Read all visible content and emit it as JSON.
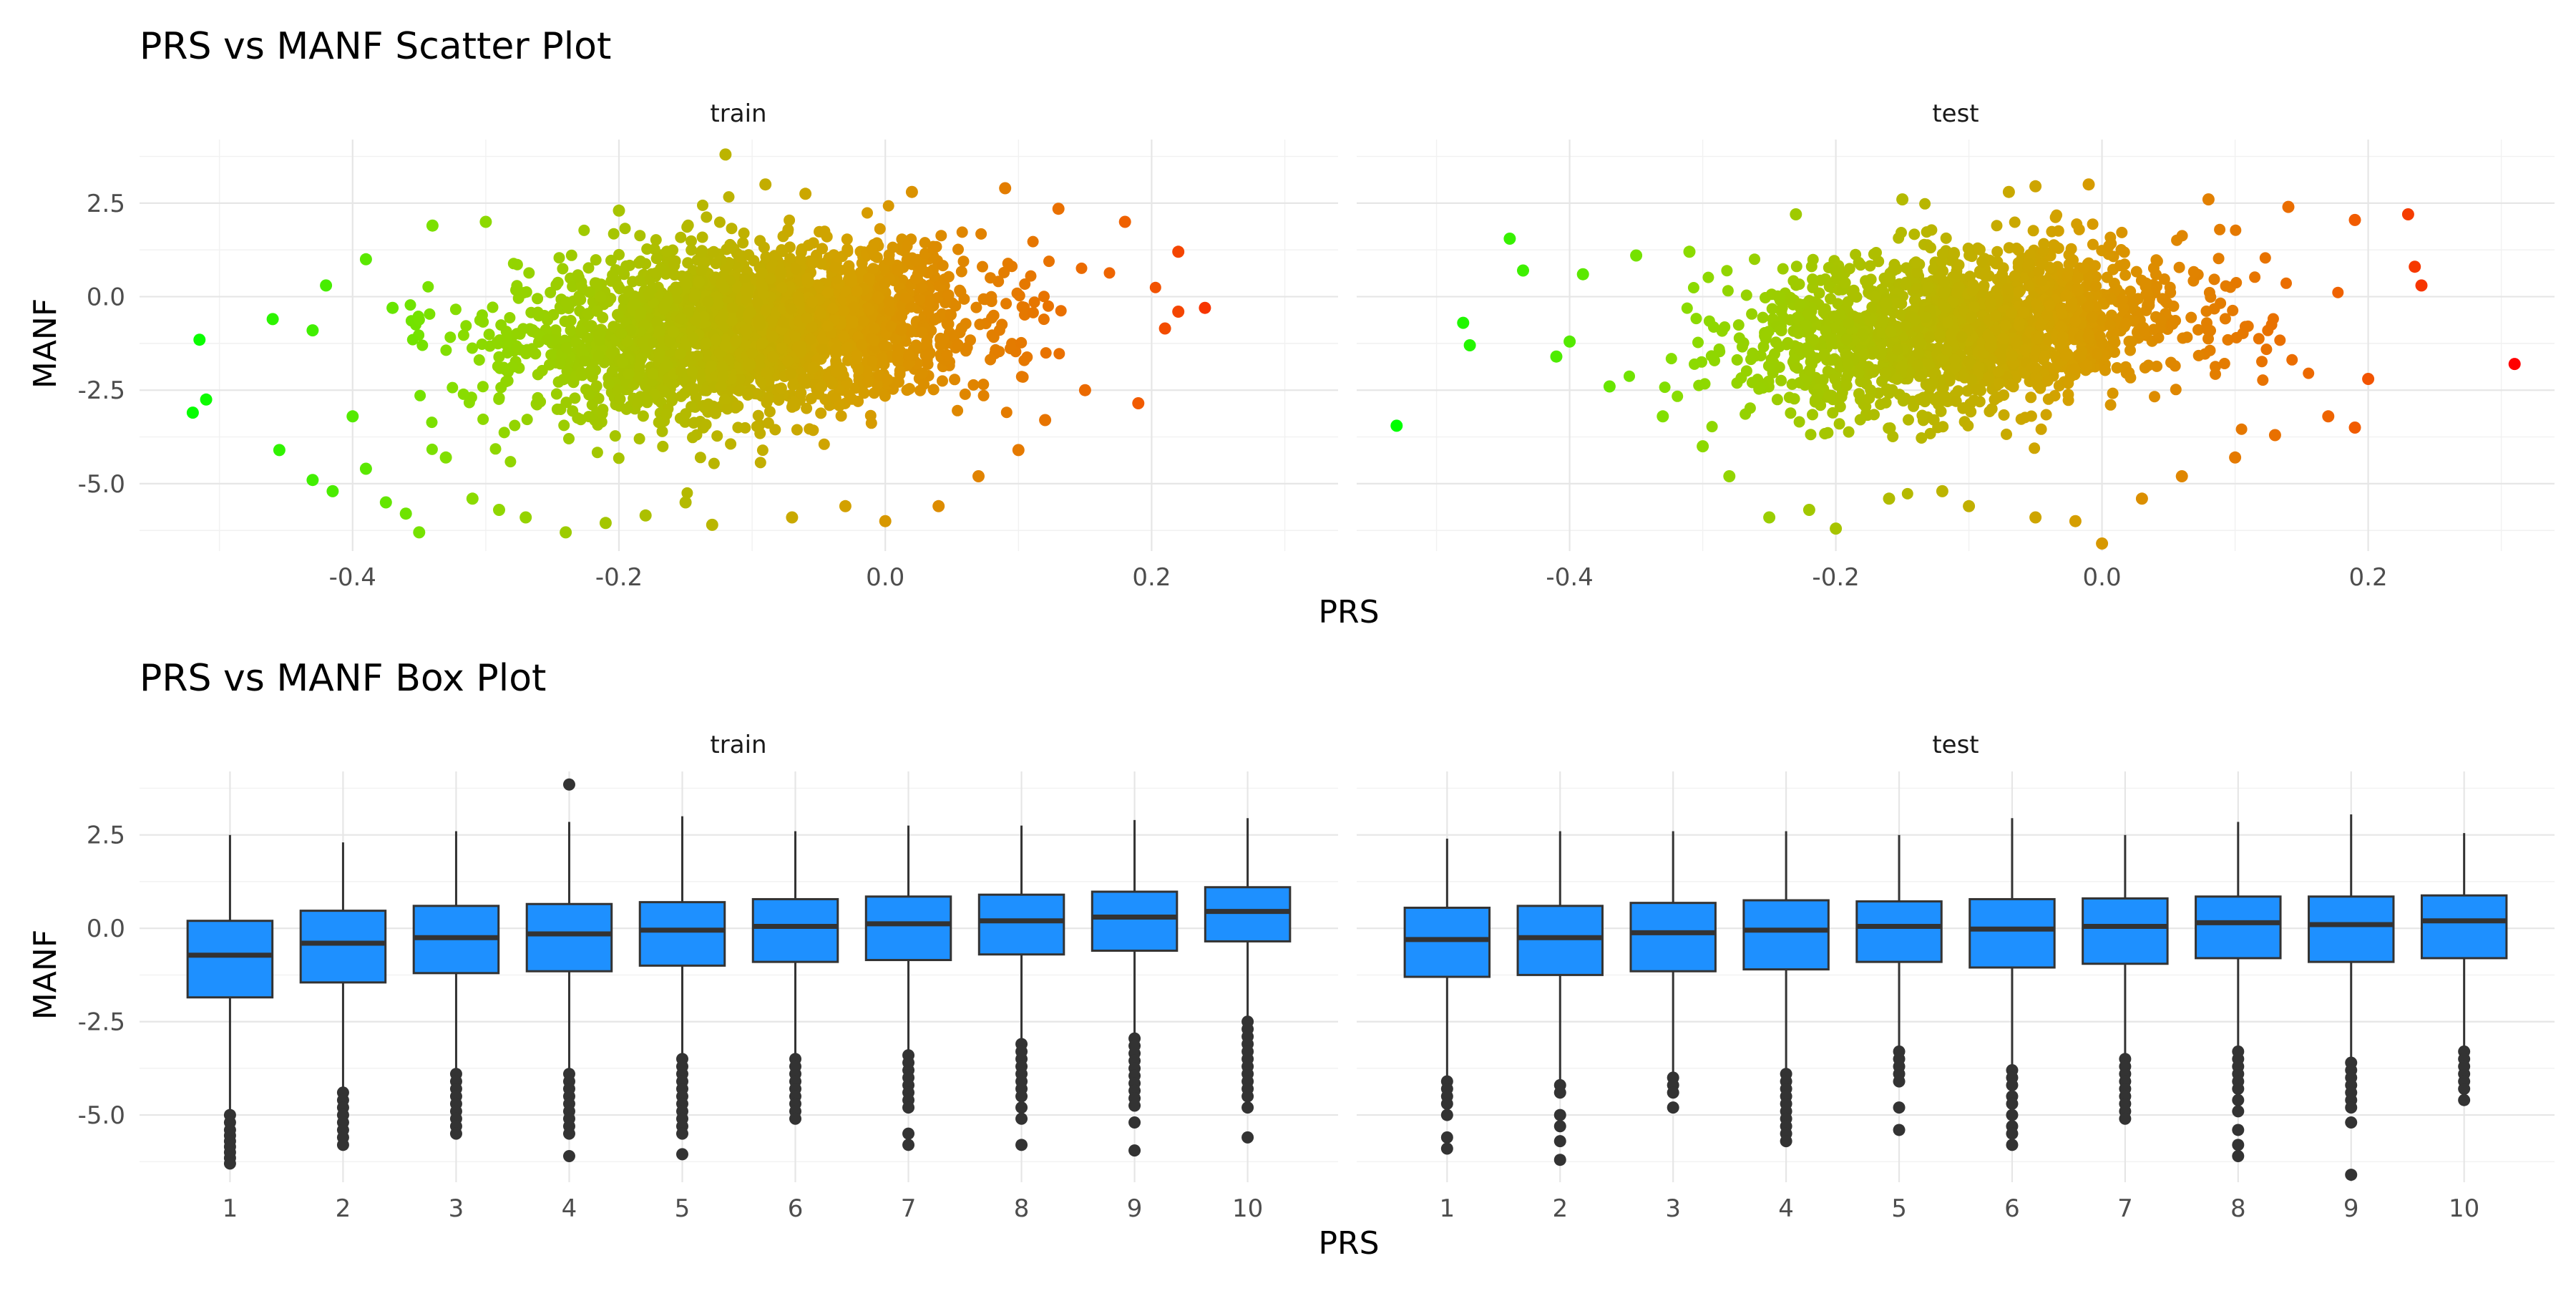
{
  "chart_data": [
    {
      "type": "scatter",
      "title": "PRS vs MANF Scatter Plot",
      "xlabel": "PRS",
      "ylabel": "MANF",
      "facets": [
        "train",
        "test"
      ],
      "xlim": [
        -0.56,
        0.34
      ],
      "ylim": [
        -6.8,
        4.2
      ],
      "x_ticks": [
        -0.4,
        -0.2,
        0.0,
        0.2
      ],
      "x_tick_labels": [
        "-0.4",
        "-0.2",
        "0.0",
        "0.2"
      ],
      "y_ticks": [
        -5.0,
        -2.5,
        0.0,
        2.5
      ],
      "y_tick_labels": [
        "-5.0",
        "-2.5",
        "0.0",
        "2.5"
      ],
      "grid": true,
      "legend": "none",
      "color_gradient": {
        "low": "#00ff00",
        "mid": "#88dd00",
        "high": "#ff0000",
        "mapped_to": "PRS"
      },
      "series": [
        {
          "facet": "train",
          "points": [
            [
              -0.52,
              -3.1
            ],
            [
              -0.51,
              -2.75
            ],
            [
              -0.515,
              -1.15
            ],
            [
              -0.46,
              -0.6
            ],
            [
              -0.455,
              -4.1
            ],
            [
              -0.43,
              -4.9
            ],
            [
              -0.415,
              -5.2
            ],
            [
              -0.4,
              -3.2
            ],
            [
              -0.39,
              -4.6
            ],
            [
              -0.375,
              -5.5
            ],
            [
              -0.36,
              -5.8
            ],
            [
              -0.35,
              -6.3
            ],
            [
              -0.42,
              0.3
            ],
            [
              -0.43,
              -0.9
            ],
            [
              -0.39,
              1.0
            ],
            [
              -0.37,
              -0.3
            ],
            [
              -0.34,
              1.9
            ],
            [
              -0.33,
              -4.3
            ],
            [
              -0.31,
              -5.4
            ],
            [
              -0.29,
              -5.7
            ],
            [
              -0.27,
              -5.9
            ],
            [
              -0.24,
              -6.3
            ],
            [
              -0.21,
              -6.05
            ],
            [
              -0.18,
              -5.85
            ],
            [
              -0.15,
              -5.5
            ],
            [
              -0.13,
              -6.1
            ],
            [
              -0.12,
              3.8
            ],
            [
              -0.09,
              3.0
            ],
            [
              -0.07,
              -5.9
            ],
            [
              -0.03,
              -5.6
            ],
            [
              0.0,
              -6.0
            ],
            [
              0.04,
              -5.6
            ],
            [
              0.07,
              -4.8
            ],
            [
              0.1,
              -4.1
            ],
            [
              0.12,
              -3.3
            ],
            [
              0.15,
              -2.5
            ],
            [
              0.19,
              -2.85
            ],
            [
              0.22,
              1.2
            ],
            [
              0.24,
              -0.3
            ],
            [
              0.22,
              -0.4
            ],
            [
              0.21,
              -0.85
            ],
            [
              0.18,
              2.0
            ],
            [
              0.13,
              2.35
            ],
            [
              0.09,
              2.9
            ],
            [
              0.02,
              2.8
            ],
            [
              -0.06,
              2.75
            ],
            [
              -0.2,
              2.3
            ],
            [
              -0.3,
              2.0
            ]
          ]
        },
        {
          "facet": "test",
          "points": [
            [
              -0.53,
              -3.45
            ],
            [
              -0.48,
              -0.7
            ],
            [
              -0.475,
              -1.3
            ],
            [
              -0.445,
              1.55
            ],
            [
              -0.435,
              0.7
            ],
            [
              -0.41,
              -1.6
            ],
            [
              -0.4,
              -1.2
            ],
            [
              -0.39,
              0.6
            ],
            [
              -0.37,
              -2.4
            ],
            [
              -0.35,
              1.1
            ],
            [
              -0.33,
              -3.2
            ],
            [
              -0.3,
              -4.0
            ],
            [
              -0.28,
              -4.8
            ],
            [
              -0.25,
              -5.9
            ],
            [
              -0.22,
              -5.7
            ],
            [
              -0.2,
              -6.2
            ],
            [
              -0.16,
              -5.4
            ],
            [
              -0.12,
              -5.2
            ],
            [
              -0.1,
              -5.6
            ],
            [
              -0.05,
              -5.9
            ],
            [
              -0.02,
              -6.0
            ],
            [
              -0.01,
              3.0
            ],
            [
              0.0,
              -6.6
            ],
            [
              0.03,
              -5.4
            ],
            [
              0.06,
              -4.8
            ],
            [
              0.1,
              -4.3
            ],
            [
              0.13,
              -3.7
            ],
            [
              0.17,
              -3.2
            ],
            [
              0.19,
              -3.5
            ],
            [
              0.2,
              -2.2
            ],
            [
              0.24,
              0.3
            ],
            [
              0.235,
              0.8
            ],
            [
              0.23,
              2.2
            ],
            [
              0.31,
              -1.8
            ],
            [
              0.19,
              2.05
            ],
            [
              0.14,
              2.4
            ],
            [
              0.08,
              2.6
            ],
            [
              -0.05,
              2.95
            ],
            [
              -0.07,
              2.8
            ],
            [
              -0.15,
              2.6
            ],
            [
              -0.23,
              2.2
            ],
            [
              -0.31,
              1.2
            ]
          ]
        }
      ]
    },
    {
      "type": "box",
      "title": "PRS vs MANF Box Plot",
      "xlabel": "PRS",
      "ylabel": "MANF",
      "facets": [
        "train",
        "test"
      ],
      "categories": [
        "1",
        "2",
        "3",
        "4",
        "5",
        "6",
        "7",
        "8",
        "9",
        "10"
      ],
      "ylim": [
        -6.8,
        4.2
      ],
      "y_ticks": [
        -5.0,
        -2.5,
        0.0,
        2.5
      ],
      "y_tick_labels": [
        "-5.0",
        "-2.5",
        "0.0",
        "2.5"
      ],
      "grid": true,
      "legend": "none",
      "box_fill": "#1e90ff",
      "outline_color": "#333333",
      "series": [
        {
          "facet": "train",
          "boxes": [
            {
              "q1": -1.85,
              "median": -0.72,
              "q3": 0.2,
              "whisker_low": -4.9,
              "whisker_high": 2.5,
              "outliers": [
                -5.0,
                -5.2,
                -5.4,
                -5.55,
                -5.7,
                -5.85,
                -6.0,
                -6.15,
                -6.3
              ]
            },
            {
              "q1": -1.45,
              "median": -0.4,
              "q3": 0.47,
              "whisker_low": -4.3,
              "whisker_high": 2.3,
              "outliers": [
                -4.4,
                -4.6,
                -4.8,
                -5.0,
                -5.2,
                -5.4,
                -5.6,
                -5.8
              ]
            },
            {
              "q1": -1.2,
              "median": -0.25,
              "q3": 0.6,
              "whisker_low": -3.8,
              "whisker_high": 2.6,
              "outliers": [
                -3.9,
                -4.1,
                -4.3,
                -4.5,
                -4.7,
                -4.9,
                -5.1,
                -5.3,
                -5.5
              ]
            },
            {
              "q1": -1.15,
              "median": -0.15,
              "q3": 0.65,
              "whisker_low": -3.8,
              "whisker_high": 2.85,
              "outliers": [
                3.85,
                -3.9,
                -4.1,
                -4.3,
                -4.5,
                -4.7,
                -4.9,
                -5.1,
                -5.3,
                -5.5,
                -6.1
              ]
            },
            {
              "q1": -1.0,
              "median": -0.05,
              "q3": 0.7,
              "whisker_low": -3.45,
              "whisker_high": 3.0,
              "outliers": [
                -3.5,
                -3.7,
                -3.9,
                -4.1,
                -4.3,
                -4.5,
                -4.7,
                -4.9,
                -5.1,
                -5.3,
                -5.5,
                -6.05
              ]
            },
            {
              "q1": -0.9,
              "median": 0.05,
              "q3": 0.78,
              "whisker_low": -3.4,
              "whisker_high": 2.6,
              "outliers": [
                -3.5,
                -3.7,
                -3.9,
                -4.1,
                -4.3,
                -4.5,
                -4.7,
                -4.9,
                -5.1
              ]
            },
            {
              "q1": -0.85,
              "median": 0.12,
              "q3": 0.85,
              "whisker_low": -3.3,
              "whisker_high": 2.75,
              "outliers": [
                -3.4,
                -3.6,
                -3.8,
                -4.0,
                -4.2,
                -4.4,
                -4.6,
                -4.8,
                -5.5,
                -5.8
              ]
            },
            {
              "q1": -0.7,
              "median": 0.2,
              "q3": 0.9,
              "whisker_low": -3.0,
              "whisker_high": 2.75,
              "outliers": [
                -3.1,
                -3.3,
                -3.5,
                -3.7,
                -3.9,
                -4.1,
                -4.3,
                -4.5,
                -4.8,
                -5.1,
                -5.8
              ]
            },
            {
              "q1": -0.6,
              "median": 0.3,
              "q3": 0.98,
              "whisker_low": -2.85,
              "whisker_high": 2.9,
              "outliers": [
                -2.95,
                -3.15,
                -3.35,
                -3.55,
                -3.75,
                -3.95,
                -4.15,
                -4.35,
                -4.55,
                -4.75,
                -5.2,
                -5.95
              ]
            },
            {
              "q1": -0.35,
              "median": 0.45,
              "q3": 1.1,
              "whisker_low": -2.4,
              "whisker_high": 2.95,
              "outliers": [
                -2.5,
                -2.7,
                -2.9,
                -3.1,
                -3.3,
                -3.5,
                -3.7,
                -3.9,
                -4.1,
                -4.3,
                -4.5,
                -4.8,
                -5.6
              ]
            }
          ]
        },
        {
          "facet": "test",
          "boxes": [
            {
              "q1": -1.3,
              "median": -0.3,
              "q3": 0.55,
              "whisker_low": -4.0,
              "whisker_high": 2.4,
              "outliers": [
                -4.1,
                -4.3,
                -4.5,
                -4.7,
                -5.0,
                -5.6,
                -5.9
              ]
            },
            {
              "q1": -1.25,
              "median": -0.25,
              "q3": 0.6,
              "whisker_low": -4.1,
              "whisker_high": 2.6,
              "outliers": [
                -4.2,
                -4.4,
                -5.0,
                -5.3,
                -5.7,
                -6.2
              ]
            },
            {
              "q1": -1.15,
              "median": -0.12,
              "q3": 0.68,
              "whisker_low": -3.9,
              "whisker_high": 2.6,
              "outliers": [
                -4.0,
                -4.2,
                -4.4,
                -4.8
              ]
            },
            {
              "q1": -1.1,
              "median": -0.05,
              "q3": 0.75,
              "whisker_low": -3.8,
              "whisker_high": 2.6,
              "outliers": [
                -3.9,
                -4.1,
                -4.3,
                -4.5,
                -4.7,
                -4.9,
                -5.1,
                -5.3,
                -5.5,
                -5.7
              ]
            },
            {
              "q1": -0.9,
              "median": 0.05,
              "q3": 0.72,
              "whisker_low": -3.2,
              "whisker_high": 2.5,
              "outliers": [
                -3.3,
                -3.5,
                -3.7,
                -3.9,
                -4.1,
                -4.8,
                -5.4
              ]
            },
            {
              "q1": -1.05,
              "median": -0.02,
              "q3": 0.78,
              "whisker_low": -3.7,
              "whisker_high": 2.95,
              "outliers": [
                -3.8,
                -4.0,
                -4.2,
                -4.5,
                -4.7,
                -5.0,
                -5.3,
                -5.5,
                -5.8
              ]
            },
            {
              "q1": -0.95,
              "median": 0.05,
              "q3": 0.8,
              "whisker_low": -3.4,
              "whisker_high": 2.5,
              "outliers": [
                -3.5,
                -3.7,
                -3.9,
                -4.1,
                -4.3,
                -4.5,
                -4.7,
                -4.9,
                -5.1
              ]
            },
            {
              "q1": -0.8,
              "median": 0.15,
              "q3": 0.85,
              "whisker_low": -3.2,
              "whisker_high": 2.85,
              "outliers": [
                -3.3,
                -3.5,
                -3.7,
                -3.9,
                -4.1,
                -4.3,
                -4.6,
                -4.9,
                -5.4,
                -5.8,
                -6.1
              ]
            },
            {
              "q1": -0.9,
              "median": 0.1,
              "q3": 0.85,
              "whisker_low": -3.5,
              "whisker_high": 3.05,
              "outliers": [
                -3.6,
                -3.8,
                -4.0,
                -4.2,
                -4.4,
                -4.6,
                -4.8,
                -5.2,
                -6.6
              ]
            },
            {
              "q1": -0.8,
              "median": 0.2,
              "q3": 0.88,
              "whisker_low": -3.2,
              "whisker_high": 2.55,
              "outliers": [
                -3.3,
                -3.5,
                -3.7,
                -3.9,
                -4.1,
                -4.3,
                -4.6
              ]
            }
          ]
        }
      ]
    }
  ]
}
